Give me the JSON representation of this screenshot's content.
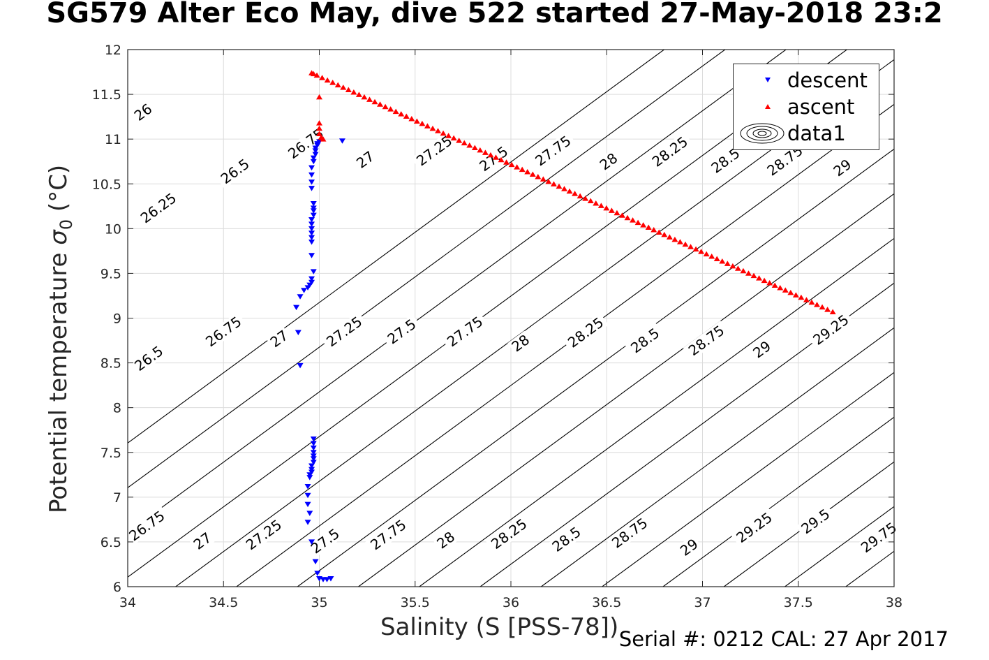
{
  "title": "SG579 Alter Eco May, dive 522 started 27-May-2018 23:2",
  "footer": "Serial #: 0212  CAL: 27 Apr 2017",
  "chart_data": {
    "type": "scatter",
    "title": "SG579 Alter Eco May, dive 522 started 27-May-2018 23:2",
    "xlabel": "Salinity (S [PSS-78])",
    "ylabel_text": "Potential temperature ",
    "ylabel_sym": "σ",
    "ylabel_sub": "0",
    "ylabel_unit": " (°C)",
    "xlim": [
      34,
      38
    ],
    "ylim": [
      6,
      12
    ],
    "xticks": [
      34,
      34.5,
      35,
      35.5,
      36,
      36.5,
      37,
      37.5,
      38
    ],
    "xtick_labels": [
      "34",
      "34.5",
      "35",
      "35.5",
      "36",
      "36.5",
      "37",
      "37.5",
      "38"
    ],
    "yticks": [
      6,
      6.5,
      7,
      7.5,
      8,
      8.5,
      9,
      9.5,
      10,
      10.5,
      11,
      11.5,
      12
    ],
    "ytick_labels": [
      "6",
      "6.5",
      "7",
      "7.5",
      "8",
      "8.5",
      "9",
      "9.5",
      "10",
      "10.5",
      "11",
      "11.5",
      "12"
    ],
    "grid": true,
    "legend_position": "top-right",
    "series": [
      {
        "name": "descent",
        "marker": "triangle-down",
        "color": "#0000ff",
        "points": [
          [
            35.0,
            10.97
          ],
          [
            34.99,
            10.95
          ],
          [
            34.99,
            10.93
          ],
          [
            34.98,
            10.9
          ],
          [
            34.98,
            10.87
          ],
          [
            34.98,
            10.83
          ],
          [
            34.97,
            10.79
          ],
          [
            34.97,
            10.75
          ],
          [
            34.96,
            10.68
          ],
          [
            34.96,
            10.6
          ],
          [
            34.96,
            10.52
          ],
          [
            34.96,
            10.45
          ],
          [
            35.12,
            10.98
          ],
          [
            34.97,
            10.28
          ],
          [
            34.97,
            10.23
          ],
          [
            34.97,
            10.2
          ],
          [
            34.97,
            10.15
          ],
          [
            34.96,
            10.1
          ],
          [
            34.96,
            10.05
          ],
          [
            34.96,
            10.0
          ],
          [
            34.96,
            9.95
          ],
          [
            34.96,
            9.9
          ],
          [
            34.96,
            9.85
          ],
          [
            34.96,
            9.7
          ],
          [
            34.97,
            9.52
          ],
          [
            34.96,
            9.44
          ],
          [
            34.96,
            9.4
          ],
          [
            34.95,
            9.37
          ],
          [
            34.94,
            9.34
          ],
          [
            34.92,
            9.31
          ],
          [
            34.9,
            9.24
          ],
          [
            34.88,
            9.12
          ],
          [
            34.89,
            8.84
          ],
          [
            34.9,
            8.47
          ],
          [
            34.97,
            7.65
          ],
          [
            34.97,
            7.6
          ],
          [
            34.97,
            7.55
          ],
          [
            34.97,
            7.5
          ],
          [
            34.97,
            7.46
          ],
          [
            34.97,
            7.43
          ],
          [
            34.97,
            7.39
          ],
          [
            34.96,
            7.35
          ],
          [
            34.96,
            7.31
          ],
          [
            34.96,
            7.28
          ],
          [
            34.95,
            7.25
          ],
          [
            34.95,
            7.22
          ],
          [
            34.94,
            7.12
          ],
          [
            34.94,
            7.02
          ],
          [
            34.94,
            6.92
          ],
          [
            34.95,
            6.82
          ],
          [
            34.94,
            6.72
          ],
          [
            34.96,
            6.5
          ],
          [
            34.98,
            6.28
          ],
          [
            34.99,
            6.15
          ],
          [
            35.0,
            6.09
          ],
          [
            35.02,
            6.08
          ],
          [
            35.04,
            6.08
          ],
          [
            35.06,
            6.09
          ]
        ]
      },
      {
        "name": "ascent",
        "marker": "triangle-up",
        "color": "#ff0000",
        "start": [
          34.96,
          11.74
        ],
        "end": [
          37.68,
          9.07
        ],
        "count": 100,
        "extra_points": [
          [
            35.0,
            11.47
          ],
          [
            35.0,
            11.18
          ],
          [
            35.0,
            11.12
          ],
          [
            35.0,
            11.06
          ],
          [
            35.01,
            11.02
          ],
          [
            35.02,
            11.0
          ],
          [
            34.97,
            11.73
          ]
        ]
      },
      {
        "name": "data1",
        "marker": "contour",
        "color": "#000000",
        "description": "sigma-0 density isopycnals",
        "levels": [
          26,
          26.25,
          26.5,
          26.75,
          27,
          27.25,
          27.5,
          27.75,
          28,
          28.25,
          28.5,
          28.75,
          29,
          29.25,
          29.5,
          29.75
        ],
        "label_sets": [
          [
            {
              "t": "26",
              "x": 34.08,
              "y": 11.3
            },
            {
              "t": "26.75",
              "x": 34.93,
              "y": 10.95
            },
            {
              "t": "27",
              "x": 35.24,
              "y": 10.77
            },
            {
              "t": "27.25",
              "x": 35.6,
              "y": 10.87
            },
            {
              "t": "27.5",
              "x": 35.91,
              "y": 10.78
            },
            {
              "t": "27.75",
              "x": 36.22,
              "y": 10.87
            },
            {
              "t": "28",
              "x": 36.51,
              "y": 10.75
            },
            {
              "t": "28.25",
              "x": 36.83,
              "y": 10.86
            },
            {
              "t": "28.5",
              "x": 37.12,
              "y": 10.76
            },
            {
              "t": "28.75",
              "x": 37.43,
              "y": 10.76
            },
            {
              "t": "29",
              "x": 37.73,
              "y": 10.68
            }
          ],
          [
            {
              "t": "26.25",
              "x": 34.16,
              "y": 10.23
            },
            {
              "t": "26.5",
              "x": 34.56,
              "y": 10.64
            }
          ],
          [
            {
              "t": "26.5",
              "x": 34.11,
              "y": 8.55
            },
            {
              "t": "26.75",
              "x": 34.5,
              "y": 8.85
            },
            {
              "t": "27",
              "x": 34.79,
              "y": 8.77
            },
            {
              "t": "27.25",
              "x": 35.13,
              "y": 8.85
            },
            {
              "t": "27.5",
              "x": 35.43,
              "y": 8.85
            },
            {
              "t": "27.75",
              "x": 35.76,
              "y": 8.85
            },
            {
              "t": "28",
              "x": 36.05,
              "y": 8.72
            },
            {
              "t": "28.25",
              "x": 36.39,
              "y": 8.84
            },
            {
              "t": "28.5",
              "x": 36.7,
              "y": 8.75
            },
            {
              "t": "28.75",
              "x": 37.02,
              "y": 8.75
            },
            {
              "t": "29",
              "x": 37.31,
              "y": 8.65
            },
            {
              "t": "29.25",
              "x": 37.67,
              "y": 8.87
            }
          ],
          [
            {
              "t": "26.75",
              "x": 34.1,
              "y": 6.68
            },
            {
              "t": "27",
              "x": 34.39,
              "y": 6.51
            },
            {
              "t": "27.25",
              "x": 34.71,
              "y": 6.58
            },
            {
              "t": "27.5",
              "x": 35.03,
              "y": 6.51
            },
            {
              "t": "27.75",
              "x": 35.36,
              "y": 6.58
            },
            {
              "t": "28",
              "x": 35.66,
              "y": 6.52
            },
            {
              "t": "28.25",
              "x": 35.99,
              "y": 6.59
            },
            {
              "t": "28.5",
              "x": 36.29,
              "y": 6.53
            },
            {
              "t": "28.75",
              "x": 36.62,
              "y": 6.6
            },
            {
              "t": "29",
              "x": 36.93,
              "y": 6.44
            },
            {
              "t": "29.25",
              "x": 37.27,
              "y": 6.66
            },
            {
              "t": "29.5",
              "x": 37.59,
              "y": 6.73
            },
            {
              "t": "29.75",
              "x": 37.92,
              "y": 6.55
            }
          ]
        ]
      }
    ]
  }
}
